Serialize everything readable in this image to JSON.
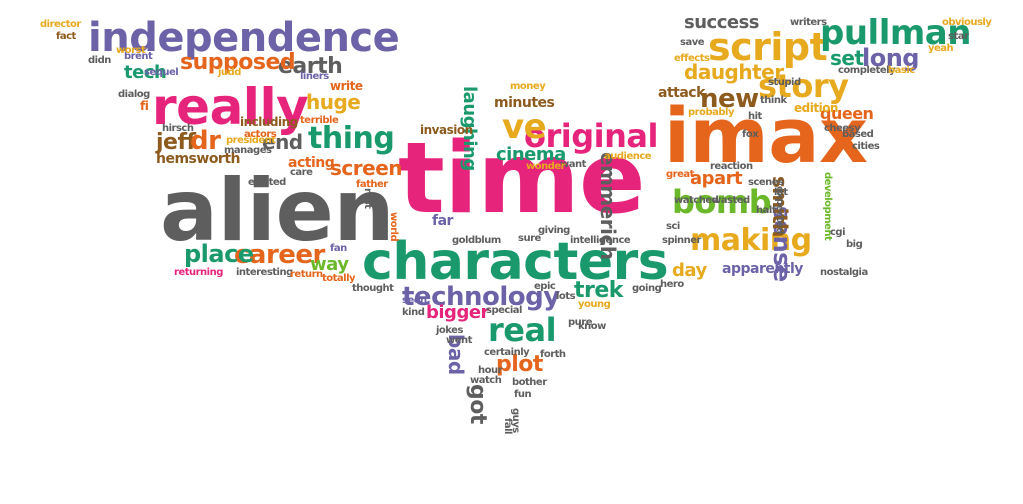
{
  "palette": {
    "magenta": "#e6247b",
    "gray": "#5e5e5e",
    "green": "#1a9a6c",
    "orange": "#e5651c",
    "purple": "#6b62a8",
    "gold": "#e7a91d",
    "lime": "#6bb82a",
    "brown": "#8d5b1e"
  },
  "words": [
    {
      "text": "time",
      "color": "magenta"
    },
    {
      "text": "alien",
      "color": "gray"
    },
    {
      "text": "imax",
      "color": "orange"
    },
    {
      "text": "characters",
      "color": "green"
    },
    {
      "text": "really",
      "color": "magenta"
    },
    {
      "text": "independence",
      "color": "purple"
    },
    {
      "text": "script",
      "color": "gold"
    },
    {
      "text": "pullman",
      "color": "green"
    },
    {
      "text": "bomb",
      "color": "lime"
    },
    {
      "text": "making",
      "color": "gold"
    },
    {
      "text": "story",
      "color": "gold"
    },
    {
      "text": "original",
      "color": "magenta"
    },
    {
      "text": "ve",
      "color": "gold"
    },
    {
      "text": "technology",
      "color": "purple"
    },
    {
      "text": "real",
      "color": "green"
    },
    {
      "text": "thing",
      "color": "green"
    },
    {
      "text": "career",
      "color": "orange"
    },
    {
      "text": "place",
      "color": "green"
    },
    {
      "text": "new",
      "color": "brown"
    },
    {
      "text": "daughter",
      "color": "gold"
    },
    {
      "text": "long",
      "color": "purple"
    },
    {
      "text": "set",
      "color": "green"
    },
    {
      "text": "success",
      "color": "gray"
    },
    {
      "text": "earth",
      "color": "gray"
    },
    {
      "text": "supposed",
      "color": "orange"
    },
    {
      "text": "tech",
      "color": "green"
    },
    {
      "text": "huge",
      "color": "gold"
    },
    {
      "text": "jeff",
      "color": "brown"
    },
    {
      "text": "dr",
      "color": "orange"
    },
    {
      "text": "end",
      "color": "gray"
    },
    {
      "text": "screen",
      "color": "orange"
    },
    {
      "text": "laughing",
      "color": "green"
    },
    {
      "text": "cinema",
      "color": "green"
    },
    {
      "text": "emmerich",
      "color": "gray"
    },
    {
      "text": "apart",
      "color": "orange"
    },
    {
      "text": "sense",
      "color": "purple"
    },
    {
      "text": "smith",
      "color": "brown"
    },
    {
      "text": "trek",
      "color": "green"
    },
    {
      "text": "bigger",
      "color": "magenta"
    },
    {
      "text": "plot",
      "color": "orange"
    },
    {
      "text": "bad",
      "color": "purple"
    },
    {
      "text": "got",
      "color": "gray"
    },
    {
      "text": "way",
      "color": "lime"
    },
    {
      "text": "day",
      "color": "gold"
    },
    {
      "text": "queen",
      "color": "orange"
    },
    {
      "text": "apparently",
      "color": "purple"
    },
    {
      "text": "far",
      "color": "purple"
    },
    {
      "text": "minutes",
      "color": "brown"
    },
    {
      "text": "invasion",
      "color": "brown"
    },
    {
      "text": "acting",
      "color": "orange"
    },
    {
      "text": "hemsworth",
      "color": "brown"
    },
    {
      "text": "including",
      "color": "brown"
    },
    {
      "text": "edition",
      "color": "gold"
    },
    {
      "text": "attack",
      "color": "brown"
    },
    {
      "text": "director",
      "color": "gold"
    },
    {
      "text": "fact",
      "color": "brown"
    },
    {
      "text": "didn",
      "color": "gray"
    },
    {
      "text": "brent",
      "color": "purple"
    },
    {
      "text": "worst",
      "color": "gold"
    },
    {
      "text": "sequel",
      "color": "purple"
    },
    {
      "text": "judd",
      "color": "gold"
    },
    {
      "text": "liners",
      "color": "purple"
    },
    {
      "text": "write",
      "color": "orange"
    },
    {
      "text": "dialog",
      "color": "gray"
    },
    {
      "text": "fi",
      "color": "orange"
    },
    {
      "text": "hirsch",
      "color": "gray"
    },
    {
      "text": "president",
      "color": "gold"
    },
    {
      "text": "actors",
      "color": "orange"
    },
    {
      "text": "manages",
      "color": "gray"
    },
    {
      "text": "terrible",
      "color": "orange"
    },
    {
      "text": "care",
      "color": "gray"
    },
    {
      "text": "father",
      "color": "orange"
    },
    {
      "text": "existed",
      "color": "gray"
    },
    {
      "text": "fan",
      "color": "purple"
    },
    {
      "text": "returning",
      "color": "magenta"
    },
    {
      "text": "interesting",
      "color": "gray"
    },
    {
      "text": "return",
      "color": "orange"
    },
    {
      "text": "totally",
      "color": "orange"
    },
    {
      "text": "thought",
      "color": "gray"
    },
    {
      "text": "seen",
      "color": "purple"
    },
    {
      "text": "money",
      "color": "gold"
    },
    {
      "text": "writers",
      "color": "gray"
    },
    {
      "text": "obviously",
      "color": "gold"
    },
    {
      "text": "star",
      "color": "gray"
    },
    {
      "text": "save",
      "color": "gray"
    },
    {
      "text": "yeah",
      "color": "gold"
    },
    {
      "text": "effects",
      "color": "gold"
    },
    {
      "text": "stupid",
      "color": "gray"
    },
    {
      "text": "completely",
      "color": "gray"
    },
    {
      "text": "basic",
      "color": "gold"
    },
    {
      "text": "think",
      "color": "gray"
    },
    {
      "text": "probably",
      "color": "gold"
    },
    {
      "text": "hit",
      "color": "gray"
    },
    {
      "text": "fox",
      "color": "gray"
    },
    {
      "text": "cheesy",
      "color": "gray"
    },
    {
      "text": "based",
      "color": "gray"
    },
    {
      "text": "cities",
      "color": "gray"
    },
    {
      "text": "great",
      "color": "orange"
    },
    {
      "text": "reaction",
      "color": "gray"
    },
    {
      "text": "scenes",
      "color": "gray"
    },
    {
      "text": "let",
      "color": "gray"
    },
    {
      "text": "wasted",
      "color": "gray"
    },
    {
      "text": "watched",
      "color": "gray"
    },
    {
      "text": "expected",
      "color": "gray"
    },
    {
      "text": "half",
      "color": "gray"
    },
    {
      "text": "cgi",
      "color": "gray"
    },
    {
      "text": "development",
      "color": "lime"
    },
    {
      "text": "big",
      "color": "gray"
    },
    {
      "text": "nostalgia",
      "color": "gray"
    },
    {
      "text": "sci",
      "color": "gray"
    },
    {
      "text": "spinner",
      "color": "gray"
    },
    {
      "text": "audience",
      "color": "gold"
    },
    {
      "text": "want",
      "color": "gray"
    },
    {
      "text": "wonder",
      "color": "gold"
    },
    {
      "text": "intelligence",
      "color": "gray"
    },
    {
      "text": "giving",
      "color": "gray"
    },
    {
      "text": "sure",
      "color": "gray"
    },
    {
      "text": "goldblum",
      "color": "gray"
    },
    {
      "text": "world",
      "color": "orange"
    },
    {
      "text": "rest",
      "color": "gray"
    },
    {
      "text": "epic",
      "color": "gray"
    },
    {
      "text": "lots",
      "color": "gray"
    },
    {
      "text": "young",
      "color": "gold"
    },
    {
      "text": "going",
      "color": "gray"
    },
    {
      "text": "hero",
      "color": "gray"
    },
    {
      "text": "special",
      "color": "gray"
    },
    {
      "text": "pure",
      "color": "gray"
    },
    {
      "text": "know",
      "color": "gray"
    },
    {
      "text": "kind",
      "color": "gray"
    },
    {
      "text": "jokes",
      "color": "gray"
    },
    {
      "text": "went",
      "color": "gray"
    },
    {
      "text": "certainly",
      "color": "gray"
    },
    {
      "text": "forth",
      "color": "gray"
    },
    {
      "text": "hour",
      "color": "gray"
    },
    {
      "text": "watch",
      "color": "gray"
    },
    {
      "text": "bother",
      "color": "gray"
    },
    {
      "text": "fun",
      "color": "gray"
    },
    {
      "text": "fall",
      "color": "gray"
    },
    {
      "text": "guys",
      "color": "gray"
    }
  ]
}
